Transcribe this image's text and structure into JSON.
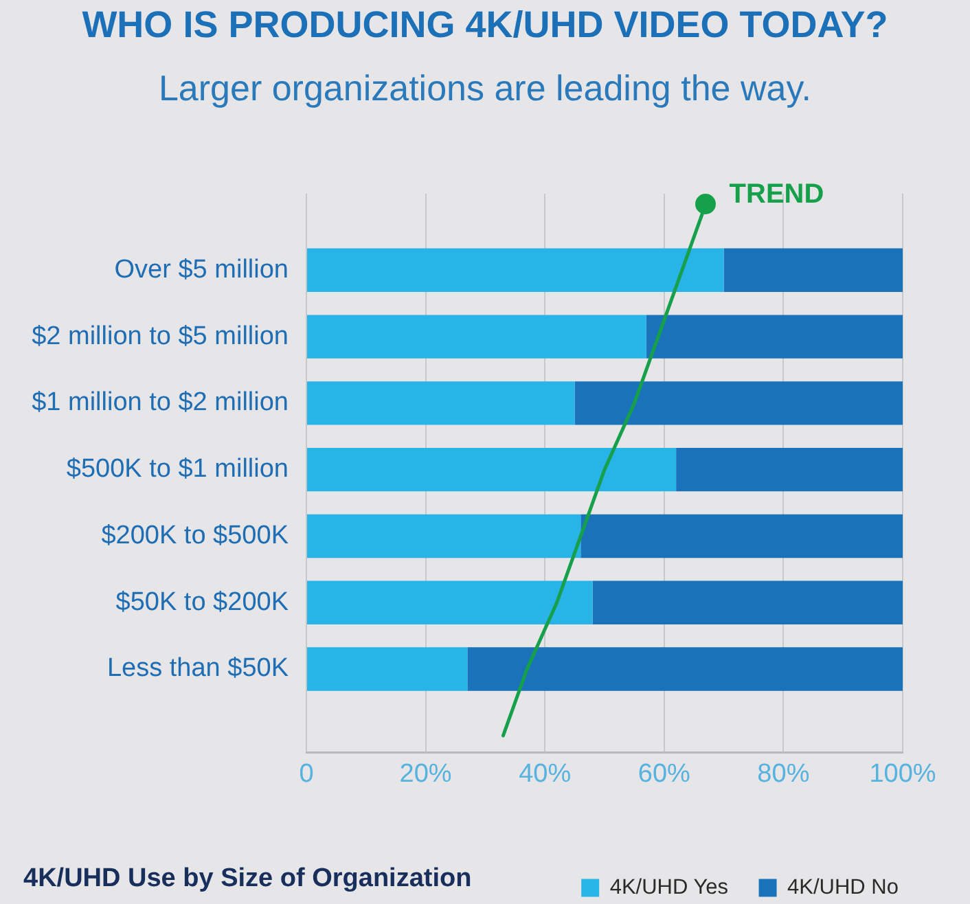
{
  "chart_data": {
    "type": "bar",
    "orientation": "horizontal",
    "stacked": true,
    "title": "WHO IS PRODUCING 4K/UHD VIDEO TODAY?",
    "subtitle": "Larger organizations are leading the way.",
    "categories": [
      null,
      "Over $5 million",
      "$2 million to $5 million",
      "$1 million to $2 million",
      "$500K to $1 million",
      "$200K to $500K",
      "$50K to $200K",
      "Less than $50K",
      null
    ],
    "series": [
      {
        "name": "4K/UHD Yes",
        "color": "#29b4e8",
        "values": [
          null,
          70,
          57,
          45,
          62,
          46,
          48,
          27,
          null
        ]
      },
      {
        "name": "4K/UHD No",
        "color": "#1a72ba",
        "values": [
          null,
          30,
          43,
          55,
          38,
          54,
          52,
          73,
          null
        ]
      },
      {
        "name": "TREND",
        "type": "line",
        "color": "#17a04b",
        "values": [
          67,
          63,
          59,
          55,
          50,
          46,
          42,
          37,
          33
        ]
      }
    ],
    "xlim": [
      0,
      100
    ],
    "xticks": [
      0,
      {
        "value": 20,
        "label": "20%"
      },
      {
        "value": 40,
        "label": "40%"
      },
      {
        "value": 60,
        "label": "60%"
      },
      {
        "value": 80,
        "label": "80%"
      },
      {
        "value": 100,
        "label": "100%"
      }
    ],
    "grid": "x",
    "legend": "bottom right",
    "annotations": [
      "4K/UHD Use by Size of Organization"
    ]
  }
}
